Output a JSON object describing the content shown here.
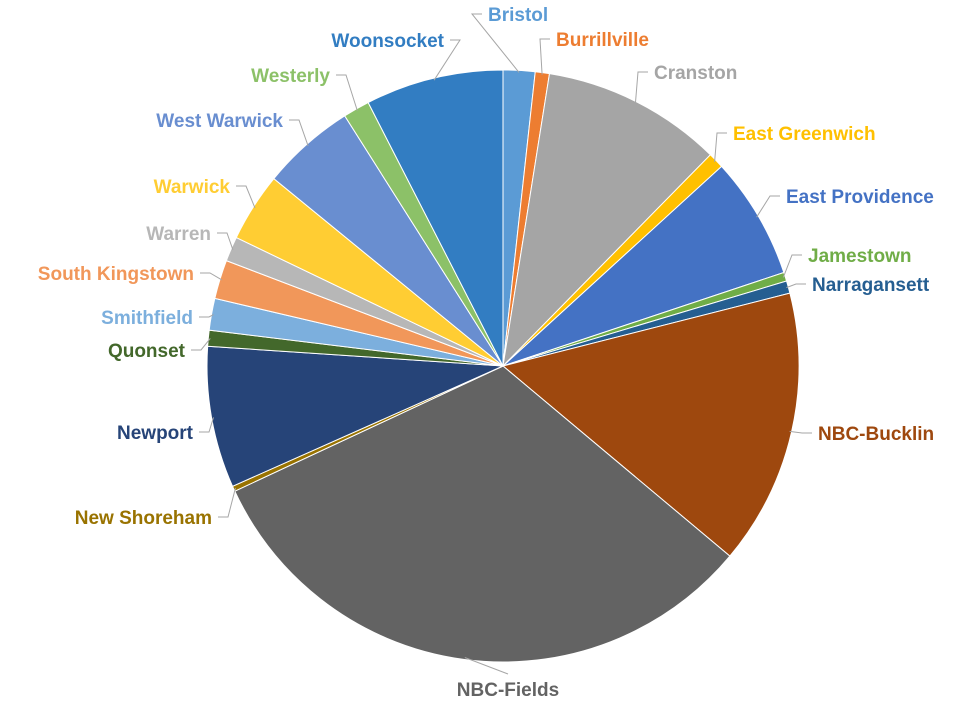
{
  "chart_data": {
    "type": "pie",
    "title": "",
    "legend": "none (category data labels on slices)",
    "slices": [
      {
        "label": "Bristol",
        "value": 1.8,
        "color": "#5b9bd5"
      },
      {
        "label": "Burrillville",
        "value": 0.8,
        "color": "#ed7d31"
      },
      {
        "label": "Cranston",
        "value": 10.2,
        "color": "#a5a5a5"
      },
      {
        "label": "East Greenwich",
        "value": 0.9,
        "color": "#ffc000"
      },
      {
        "label": "East Providence",
        "value": 6.9,
        "color": "#4472c4"
      },
      {
        "label": "Jamestown",
        "value": 0.5,
        "color": "#70ad47"
      },
      {
        "label": "Narragansett",
        "value": 0.7,
        "color": "#255e91"
      },
      {
        "label": "NBC-Bucklin",
        "value": 15.6,
        "color": "#9e480e"
      },
      {
        "label": "NBC-Fields",
        "value": 33.1,
        "color": "#636363"
      },
      {
        "label": "New Shoreham",
        "value": 0.3,
        "color": "#997300"
      },
      {
        "label": "Newport",
        "value": 8.0,
        "color": "#264478"
      },
      {
        "label": "Quonset",
        "value": 0.9,
        "color": "#43682b"
      },
      {
        "label": "Smithfield",
        "value": 1.8,
        "color": "#7cafdd"
      },
      {
        "label": "South Kingstown",
        "value": 2.2,
        "color": "#f1975a"
      },
      {
        "label": "Warren",
        "value": 1.4,
        "color": "#b7b7b7"
      },
      {
        "label": "Warwick",
        "value": 3.9,
        "color": "#ffcd33"
      },
      {
        "label": "West Warwick",
        "value": 5.3,
        "color": "#698ed0"
      },
      {
        "label": "Westerly",
        "value": 1.5,
        "color": "#8cc168"
      },
      {
        "label": "Woonsocket",
        "value": 7.8,
        "color": "#327dc2"
      }
    ]
  }
}
